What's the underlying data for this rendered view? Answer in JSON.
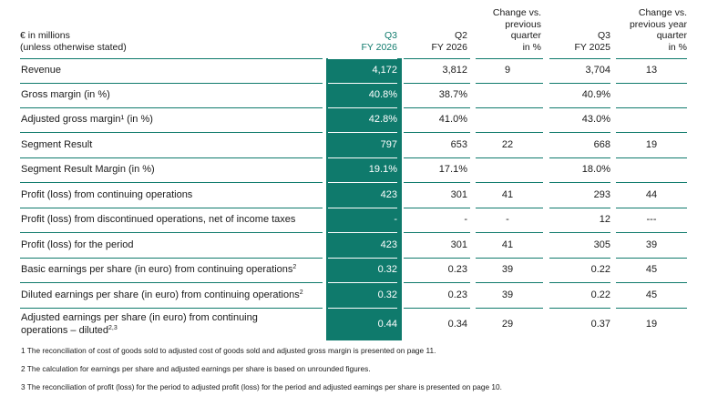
{
  "header": {
    "unit_line1": "€ in millions",
    "unit_line2": "(unless otherwise stated)",
    "q3_line1": "Q3",
    "q3_line2": "FY 2026",
    "q2_line1": "Q2",
    "q2_line2": "FY 2026",
    "chq_line1": "Change vs.",
    "chq_line2": "previous",
    "chq_line3": "quarter",
    "chq_line4": "in %",
    "q3p_line1": "Q3",
    "q3p_line2": "FY 2025",
    "chy_line1": "Change vs.",
    "chy_line2": "previous year",
    "chy_line3": "quarter",
    "chy_line4": "in %"
  },
  "rows": [
    {
      "label": "Revenue",
      "sup": "",
      "q3": "4,172",
      "q2": "3,812",
      "chq": "9",
      "q3p": "3,704",
      "chy": "13"
    },
    {
      "label": "Gross margin (in %)",
      "sup": "",
      "q3": "40.8%",
      "q2": "38.7%",
      "chq": "",
      "q3p": "40.9%",
      "chy": ""
    },
    {
      "label": "Adjusted gross margin¹ (in %)",
      "sup": "",
      "q3": "42.8%",
      "q2": "41.0%",
      "chq": "",
      "q3p": "43.0%",
      "chy": ""
    },
    {
      "label": "Segment Result",
      "sup": "",
      "q3": "797",
      "q2": "653",
      "chq": "22",
      "q3p": "668",
      "chy": "19"
    },
    {
      "label": "Segment Result Margin (in %)",
      "sup": "",
      "q3": "19.1%",
      "q2": "17.1%",
      "chq": "",
      "q3p": "18.0%",
      "chy": ""
    },
    {
      "label": "Profit (loss) from continuing operations",
      "sup": "",
      "q3": "423",
      "q2": "301",
      "chq": "41",
      "q3p": "293",
      "chy": "44"
    },
    {
      "label": "Profit (loss) from discontinued operations, net of income taxes",
      "sup": "",
      "q3": "-",
      "q2": "-",
      "chq": "-",
      "q3p": "12",
      "chy": "---"
    },
    {
      "label": "Profit (loss) for the period",
      "sup": "",
      "q3": "423",
      "q2": "301",
      "chq": "41",
      "q3p": "305",
      "chy": "39"
    },
    {
      "label": "Basic earnings per share (in euro) from continuing operations",
      "sup": "2",
      "q3": "0.32",
      "q2": "0.23",
      "chq": "39",
      "q3p": "0.22",
      "chy": "45"
    },
    {
      "label": "Diluted earnings per share (in euro) from continuing operations",
      "sup": "2",
      "q3": "0.32",
      "q2": "0.23",
      "chq": "39",
      "q3p": "0.22",
      "chy": "45"
    }
  ],
  "last_row": {
    "label_line1": "Adjusted earnings per share (in euro) from continuing",
    "label_line2": "operations – diluted",
    "sup": "2,3",
    "q3": "0.44",
    "q2": "0.34",
    "chq": "29",
    "q3p": "0.37",
    "chy": "19"
  },
  "footnotes": [
    "1 The reconciliation of cost of goods sold to adjusted cost of goods sold and adjusted gross margin is presented on page 11.",
    "2 The calculation for earnings per share and adjusted earnings per share is based on unrounded figures.",
    "3 The reconciliation of profit (loss) for the period to adjusted profit (loss) for the period and adjusted earnings per share is presented on page 10."
  ],
  "colors": {
    "accent": "#0f7a6c",
    "highlight_text": "#ffffff"
  }
}
